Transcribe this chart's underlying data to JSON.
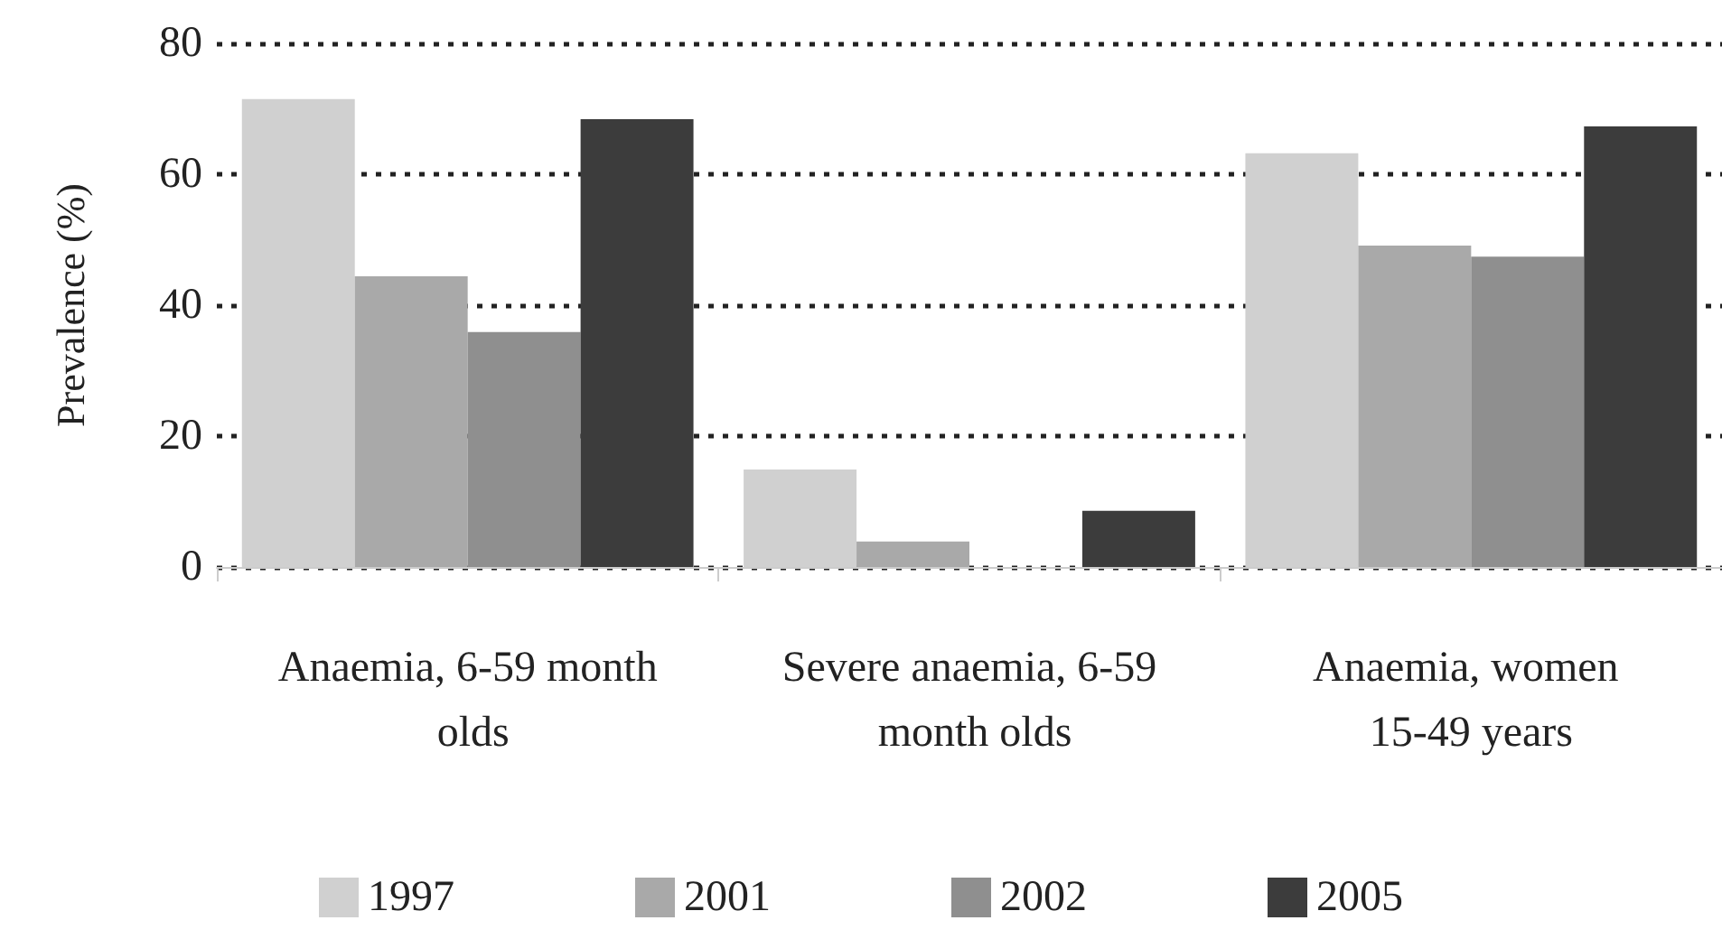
{
  "chart_data": {
    "type": "bar",
    "ylabel": "Prevalence (%)",
    "categories": [
      "Anaemia, 6-59 month olds",
      "Severe anaemia, 6-59 month olds",
      "Anaemia, women 15-49 years"
    ],
    "series": [
      {
        "name": "1997",
        "color": "#d0d0d0",
        "values": [
          71.5,
          14.9,
          63.2
        ]
      },
      {
        "name": "2001",
        "color": "#a9a9a9",
        "values": [
          44.4,
          3.9,
          49.1
        ]
      },
      {
        "name": "2002",
        "color": "#8f8f8f",
        "values": [
          35.9,
          null,
          47.4
        ]
      },
      {
        "name": "2005",
        "color": "#3c3c3c",
        "values": [
          68.4,
          8.6,
          67.3
        ]
      }
    ],
    "ylim": [
      0,
      80
    ],
    "yticks": [
      0,
      20,
      40,
      60,
      80
    ],
    "grid": "y",
    "legend": "bottom"
  }
}
